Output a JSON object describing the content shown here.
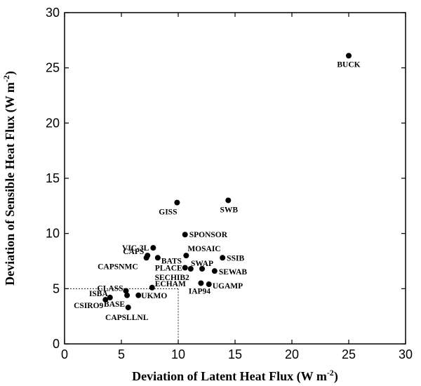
{
  "chart_data": {
    "type": "scatter",
    "xlim": [
      0,
      30
    ],
    "ylim": [
      0,
      30
    ],
    "x_ticks": [
      "0",
      "5",
      "10",
      "15",
      "20",
      "25",
      "30"
    ],
    "y_ticks": [
      "0",
      "5",
      "10",
      "15",
      "20",
      "25",
      "30"
    ],
    "xlabel": {
      "main": "Deviation of Latent Heat Flux (W m",
      "sup": "-2",
      "tail": ")"
    },
    "ylabel": {
      "main": "Deviation of Sensible Heat Flux (W m",
      "sup": "-2",
      "tail": ")"
    },
    "reference_lines": {
      "x": 10,
      "y": 5
    },
    "points": [
      {
        "label": "BUCK",
        "x": 25.0,
        "y": 26.1
      },
      {
        "label": "SWB",
        "x": 14.4,
        "y": 13.0
      },
      {
        "label": "GISS",
        "x": 9.9,
        "y": 12.8
      },
      {
        "label": "SPONSOR",
        "x": 10.6,
        "y": 9.9
      },
      {
        "label": "VIC-3L",
        "x": 7.8,
        "y": 8.7
      },
      {
        "label": "CAPS",
        "x": 7.3,
        "y": 8.0
      },
      {
        "label": "CAPSNMC",
        "x": 7.2,
        "y": 7.8
      },
      {
        "label": "BATS",
        "x": 8.2,
        "y": 7.8
      },
      {
        "label": "MOSAIC",
        "x": 10.7,
        "y": 8.0
      },
      {
        "label": "SSIB",
        "x": 13.9,
        "y": 7.8
      },
      {
        "label": "PLACE",
        "x": 10.6,
        "y": 6.9
      },
      {
        "label": "SECHIB2",
        "x": 11.1,
        "y": 6.8
      },
      {
        "label": "SWAP",
        "x": 12.1,
        "y": 6.8
      },
      {
        "label": "SEWAB",
        "x": 13.2,
        "y": 6.6
      },
      {
        "label": "IAP94",
        "x": 12.0,
        "y": 5.5
      },
      {
        "label": "UGAMP",
        "x": 12.7,
        "y": 5.4
      },
      {
        "label": "ECHAM",
        "x": 7.7,
        "y": 5.1
      },
      {
        "label": "CLASS",
        "x": 5.4,
        "y": 4.8
      },
      {
        "label": "UKMO",
        "x": 6.5,
        "y": 4.4
      },
      {
        "label": "BASE",
        "x": 5.5,
        "y": 4.4
      },
      {
        "label": "ISBA",
        "x": 4.0,
        "y": 4.2
      },
      {
        "label": "CSIRO9",
        "x": 3.6,
        "y": 4.0
      },
      {
        "label": "CAPSLLNL",
        "x": 5.6,
        "y": 3.3
      }
    ]
  }
}
